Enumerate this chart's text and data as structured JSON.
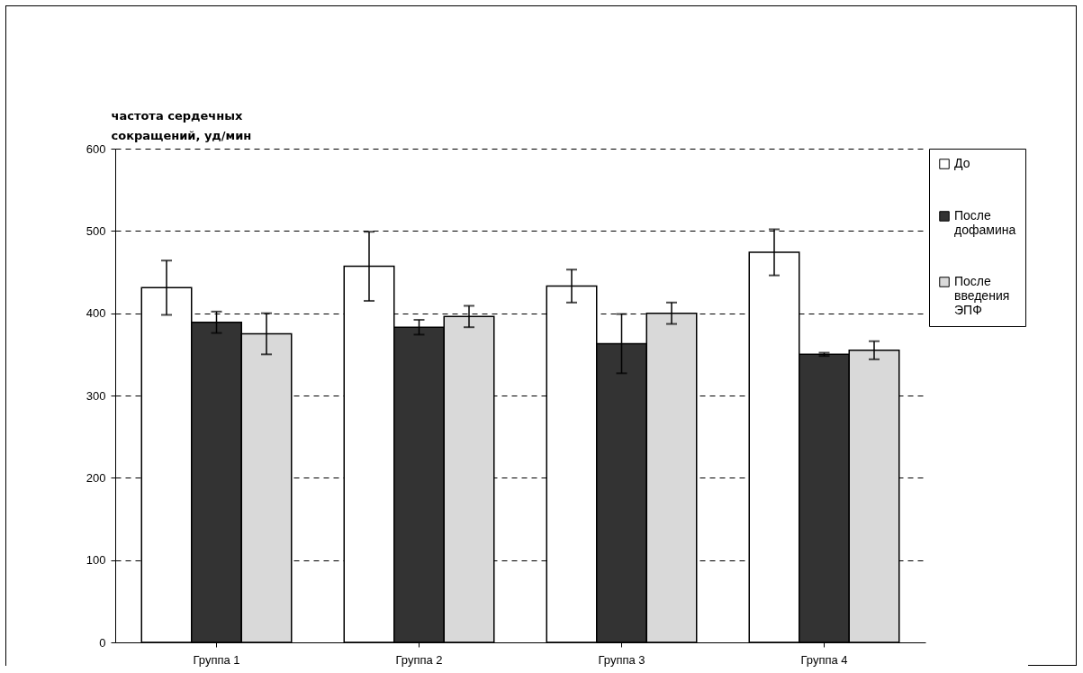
{
  "chart_data": {
    "type": "bar",
    "ylabel": "частота сердечных сокращений, уд/мин",
    "categories": [
      "Группа 1",
      "Группа 2",
      "Группа 3",
      "Группа 4"
    ],
    "series": [
      {
        "name": "До",
        "color": "#ffffff",
        "values": [
          431,
          457,
          433,
          474
        ],
        "errors": [
          33,
          42,
          20,
          28
        ]
      },
      {
        "name": "После дофамина",
        "color": "#333333",
        "values": [
          389,
          383,
          363,
          350
        ],
        "errors": [
          13,
          9,
          36,
          2
        ]
      },
      {
        "name": "После введения ЭПФ",
        "color": "#d9d9d9",
        "values": [
          375,
          396,
          400,
          355
        ],
        "errors": [
          25,
          13,
          13,
          11
        ]
      }
    ],
    "ylim": [
      0,
      600
    ],
    "yticks": [
      0,
      100,
      200,
      300,
      400,
      500,
      600
    ],
    "grid": "y",
    "legend": "right"
  }
}
